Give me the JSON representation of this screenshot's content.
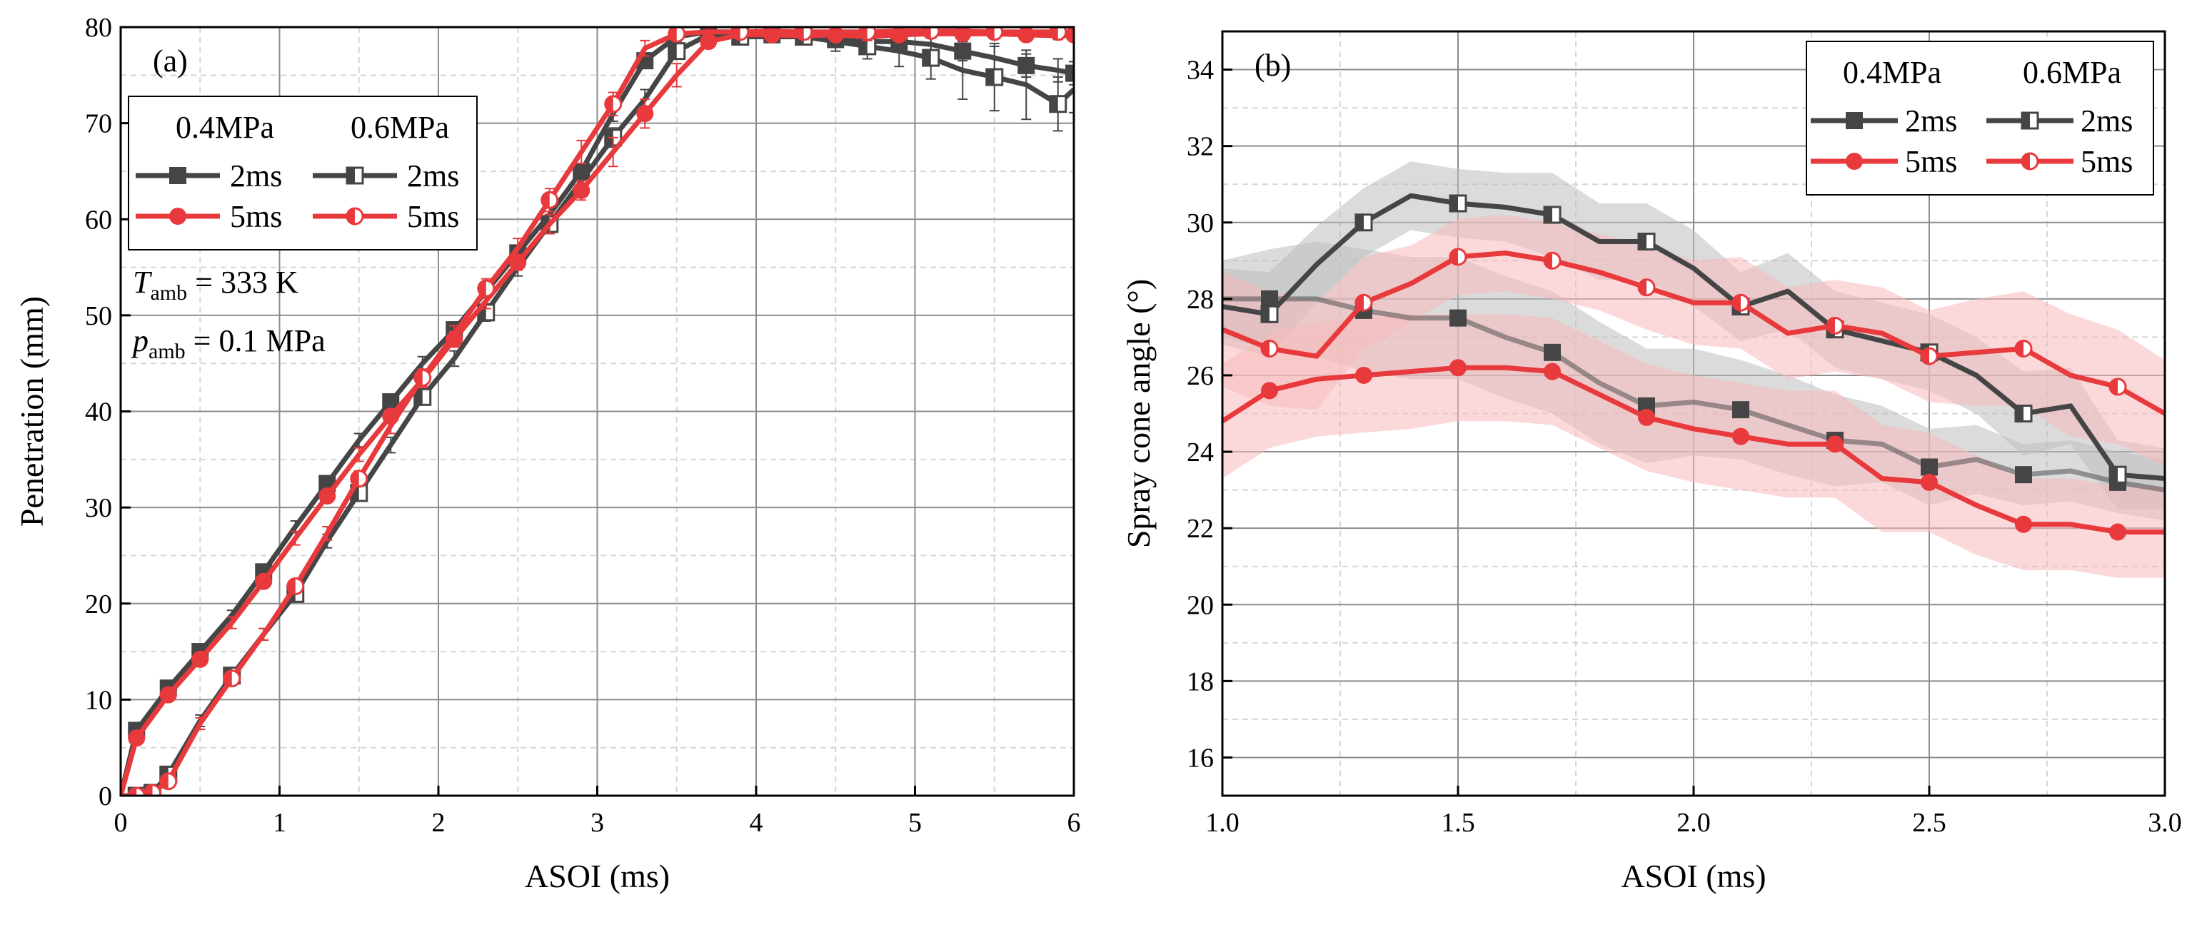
{
  "colors": {
    "dark": "#454545",
    "red": "#e8393c",
    "band_dark": "#bdbdbd",
    "band_red": "#f7b9bb",
    "grid_major": "#8c8c8c",
    "grid_minor": "#d6d6d6"
  },
  "chart_data": [
    {
      "type": "line",
      "panel_label": "(a)",
      "xlabel": "ASOI (ms)",
      "ylabel": "Penetration (mm)",
      "xlim": [
        0,
        6
      ],
      "ylim": [
        0,
        80
      ],
      "xticks": [
        0,
        1,
        2,
        3,
        4,
        5,
        6
      ],
      "yticks": [
        0,
        10,
        20,
        30,
        40,
        50,
        60,
        70,
        80
      ],
      "grid": true,
      "legend": {
        "position": "top-left",
        "headers": [
          "0.4MPa",
          "0.6MPa"
        ],
        "rows": [
          {
            "left": "2ms",
            "right": "2ms"
          },
          {
            "left": "5ms",
            "right": "5ms"
          }
        ]
      },
      "annotation": {
        "t_symbol": "T",
        "t_sub": "amb",
        "t_value": " = 333 K",
        "p_symbol": "p",
        "p_sub": "amb",
        "p_value": " = 0.1 MPa"
      },
      "series": [
        {
          "name": "0.4MPa 2ms",
          "color": "dark",
          "marker": "square-filled",
          "x": [
            0,
            0.1,
            0.3,
            0.5,
            0.7,
            0.9,
            1.1,
            1.3,
            1.5,
            1.7,
            1.9,
            2.1,
            2.3,
            2.5,
            2.7,
            2.9,
            3.1,
            3.3,
            3.5,
            3.7,
            3.9,
            4.1,
            4.3,
            4.5,
            4.7,
            4.9,
            5.1,
            5.3,
            5.5,
            5.7,
            5.9,
            6.0
          ],
          "y": [
            0,
            6.8,
            11.2,
            15,
            18.8,
            23.3,
            28,
            32.5,
            37,
            41,
            45,
            48.5,
            52.5,
            56.5,
            60.5,
            65,
            71,
            76.5,
            79,
            79.5,
            79.5,
            79.2,
            79,
            78.7,
            78.5,
            78.5,
            78.2,
            77.5,
            76.8,
            76,
            75.5,
            75.2
          ],
          "err": [
            0,
            0.5,
            0.5,
            0.5,
            0.5,
            0.6,
            0.6,
            0.7,
            0.7,
            0.7,
            0.7,
            0.7,
            0.7,
            0.8,
            0.8,
            0.8,
            0.8,
            0.8,
            0.5,
            0.3,
            0.3,
            0.4,
            0.5,
            0.6,
            0.8,
            1,
            1,
            1,
            1.2,
            1.2,
            1.2,
            1.2
          ]
        },
        {
          "name": "0.6MPa 2ms",
          "color": "dark",
          "marker": "square-half",
          "x": [
            0,
            0.1,
            0.2,
            0.3,
            0.5,
            0.7,
            0.9,
            1.1,
            1.3,
            1.5,
            1.7,
            1.9,
            2.1,
            2.3,
            2.5,
            2.7,
            2.9,
            3.1,
            3.3,
            3.5,
            3.7,
            3.9,
            4.1,
            4.3,
            4.5,
            4.7,
            4.9,
            5.1,
            5.3,
            5.5,
            5.7,
            5.9,
            6.0
          ],
          "y": [
            0,
            0,
            0.3,
            2.2,
            7.8,
            12.5,
            16.8,
            21,
            26.5,
            31.5,
            36.5,
            41.5,
            45.5,
            50.3,
            55,
            59.5,
            64,
            68.5,
            72.5,
            77.5,
            79.2,
            79,
            79,
            79,
            78.5,
            78,
            77.5,
            76.8,
            75.5,
            74.8,
            74,
            72,
            73.5
          ],
          "err": [
            0,
            0,
            0.2,
            0.5,
            0.6,
            0.6,
            0.6,
            0.7,
            0.7,
            0.8,
            0.8,
            0.8,
            0.8,
            0.9,
            0.9,
            1,
            1,
            1,
            1,
            0.8,
            0.5,
            0.5,
            0.6,
            0.8,
            1,
            1.3,
            1.6,
            2.2,
            3,
            3.5,
            3.6,
            2.8,
            2.4
          ]
        },
        {
          "name": "0.4MPa 5ms",
          "color": "red",
          "marker": "circle-filled",
          "x": [
            0,
            0.1,
            0.3,
            0.5,
            0.7,
            0.9,
            1.1,
            1.3,
            1.5,
            1.7,
            1.9,
            2.1,
            2.3,
            2.5,
            2.7,
            2.9,
            3.1,
            3.3,
            3.5,
            3.7,
            3.9,
            4.1,
            4.3,
            4.5,
            4.7,
            4.9,
            5.1,
            5.3,
            5.5,
            5.7,
            5.9,
            6.0
          ],
          "y": [
            0,
            6,
            10.5,
            14.2,
            18,
            22.3,
            26.8,
            31.2,
            35.5,
            39.5,
            43.3,
            47.5,
            51.5,
            55.5,
            59.5,
            63,
            67,
            71,
            75,
            78.5,
            79.2,
            79.2,
            79.1,
            79.2,
            79,
            79.2,
            79.3,
            79.3,
            79.3,
            79.2,
            79.1,
            79.2
          ],
          "err": [
            0,
            0.5,
            0.5,
            0.5,
            0.6,
            0.6,
            0.7,
            0.7,
            0.7,
            0.7,
            0.8,
            0.8,
            0.8,
            0.8,
            1,
            1,
            1.5,
            1.5,
            1.2,
            0.6,
            0.4,
            0.4,
            0.4,
            0.4,
            0.4,
            0.4,
            0.4,
            0.4,
            0.4,
            0.4,
            0.4,
            0.4
          ]
        },
        {
          "name": "0.6MPa 5ms",
          "color": "red",
          "marker": "circle-half",
          "x": [
            0,
            0.1,
            0.2,
            0.3,
            0.5,
            0.7,
            0.9,
            1.1,
            1.3,
            1.5,
            1.7,
            1.9,
            2.1,
            2.3,
            2.5,
            2.7,
            2.9,
            3.1,
            3.3,
            3.5,
            3.7,
            3.9,
            4.1,
            4.3,
            4.5,
            4.7,
            4.9,
            5.1,
            5.3,
            5.5,
            5.7,
            5.9,
            6.0
          ],
          "y": [
            0,
            0,
            0.3,
            1.5,
            7.5,
            12.2,
            16.8,
            21.8,
            27.3,
            33,
            38.5,
            43.5,
            48,
            52.8,
            57,
            62,
            67,
            72,
            77.8,
            79.3,
            79.5,
            79.5,
            79.6,
            79.5,
            79.5,
            79.5,
            79.6,
            79.6,
            79.6,
            79.5,
            79.5,
            79.5,
            79.5
          ],
          "err": [
            0,
            0,
            0.2,
            0.5,
            0.6,
            0.6,
            0.6,
            0.7,
            0.7,
            0.8,
            0.8,
            0.9,
            0.9,
            1,
            1,
            1.2,
            1.2,
            1.2,
            0.8,
            0.5,
            0.4,
            0.4,
            0.4,
            0.4,
            0.4,
            0.4,
            0.4,
            0.4,
            0.4,
            0.4,
            0.4,
            0.4,
            0.4
          ]
        }
      ]
    },
    {
      "type": "line",
      "panel_label": "(b)",
      "xlabel": "ASOI (ms)",
      "ylabel": "Spray cone angle (°)",
      "xlim": [
        1.0,
        3.0
      ],
      "ylim": [
        15,
        35
      ],
      "xticks": [
        1.0,
        1.5,
        2.0,
        2.5,
        3.0
      ],
      "xtick_labels": [
        "1.0",
        "1.5",
        "2.0",
        "2.5",
        "3.0"
      ],
      "yticks": [
        16,
        18,
        20,
        22,
        24,
        26,
        28,
        30,
        32,
        34
      ],
      "grid": true,
      "legend": {
        "position": "top-right",
        "headers": [
          "0.4MPa",
          "0.6MPa"
        ],
        "rows": [
          {
            "left": "2ms",
            "right": "2ms"
          },
          {
            "left": "5ms",
            "right": "5ms"
          }
        ]
      },
      "series": [
        {
          "name": "0.4MPa 2ms",
          "color": "dark",
          "marker": "square-filled",
          "line_opacity": 0.5,
          "x": [
            1.0,
            1.1,
            1.2,
            1.3,
            1.4,
            1.5,
            1.6,
            1.7,
            1.8,
            1.9,
            2.0,
            2.1,
            2.2,
            2.3,
            2.4,
            2.5,
            2.6,
            2.7,
            2.8,
            2.9,
            3.0
          ],
          "y": [
            28,
            28,
            28,
            27.7,
            27.5,
            27.5,
            27,
            26.6,
            25.8,
            25.2,
            25.3,
            25.1,
            24.7,
            24.3,
            24.2,
            23.6,
            23.8,
            23.4,
            23.5,
            23.2,
            23.0
          ],
          "band": [
            1.0,
            1.3,
            1.5,
            1.6,
            1.6,
            1.6,
            1.6,
            1.6,
            1.6,
            1.5,
            1.4,
            1.3,
            1.3,
            1.2,
            1.0,
            1.0,
            0.9,
            0.8,
            0.8,
            0.8,
            0.8
          ]
        },
        {
          "name": "0.6MPa 2ms",
          "color": "dark",
          "marker": "square-half",
          "x": [
            1.0,
            1.1,
            1.2,
            1.3,
            1.4,
            1.5,
            1.6,
            1.7,
            1.8,
            1.9,
            2.0,
            2.1,
            2.2,
            2.3,
            2.4,
            2.5,
            2.6,
            2.7,
            2.8,
            2.9,
            3.0
          ],
          "y": [
            27.8,
            27.6,
            28.9,
            30,
            30.7,
            30.5,
            30.4,
            30.2,
            29.5,
            29.5,
            28.8,
            27.8,
            28.2,
            27.2,
            26.9,
            26.6,
            26,
            25,
            25.2,
            23.4,
            23.3
          ],
          "band": [
            1.0,
            1.1,
            1.0,
            0.9,
            0.9,
            0.9,
            0.9,
            1.1,
            1.0,
            1.0,
            1.0,
            0.9,
            1.0,
            1.0,
            1.0,
            1.0,
            1.0,
            1.1,
            1.0,
            0.9,
            0.8
          ]
        },
        {
          "name": "0.4MPa 5ms",
          "color": "red",
          "marker": "circle-filled",
          "x": [
            1.0,
            1.1,
            1.2,
            1.3,
            1.4,
            1.5,
            1.6,
            1.7,
            1.8,
            1.9,
            2.0,
            2.1,
            2.2,
            2.3,
            2.4,
            2.5,
            2.6,
            2.7,
            2.8,
            2.9,
            3.0
          ],
          "y": [
            24.8,
            25.6,
            25.9,
            26,
            26.1,
            26.2,
            26.2,
            26.1,
            25.5,
            24.9,
            24.6,
            24.4,
            24.2,
            24.2,
            23.3,
            23.2,
            22.6,
            22.1,
            22.1,
            21.9,
            21.9
          ],
          "band": [
            1.5,
            1.5,
            1.5,
            1.5,
            1.5,
            1.4,
            1.4,
            1.4,
            1.4,
            1.4,
            1.4,
            1.4,
            1.4,
            1.4,
            1.4,
            1.3,
            1.3,
            1.2,
            1.2,
            1.2,
            1.2
          ]
        },
        {
          "name": "0.6MPa 5ms",
          "color": "red",
          "marker": "circle-half",
          "x": [
            1.0,
            1.1,
            1.2,
            1.3,
            1.4,
            1.5,
            1.6,
            1.7,
            1.8,
            1.9,
            2.0,
            2.1,
            2.2,
            2.3,
            2.4,
            2.5,
            2.6,
            2.7,
            2.8,
            2.9,
            3.0
          ],
          "y": [
            27.2,
            26.7,
            26.5,
            27.9,
            28.4,
            29.1,
            29.2,
            29,
            28.7,
            28.3,
            27.9,
            27.9,
            27.1,
            27.3,
            27.1,
            26.5,
            26.6,
            26.7,
            26,
            25.7,
            25.0
          ],
          "band": [
            1.5,
            1.5,
            1.4,
            1.2,
            1.0,
            1.0,
            1.0,
            1.0,
            1.0,
            1.1,
            1.1,
            1.2,
            1.2,
            1.2,
            1.2,
            1.2,
            1.4,
            1.5,
            1.6,
            1.5,
            1.4
          ]
        }
      ]
    }
  ]
}
